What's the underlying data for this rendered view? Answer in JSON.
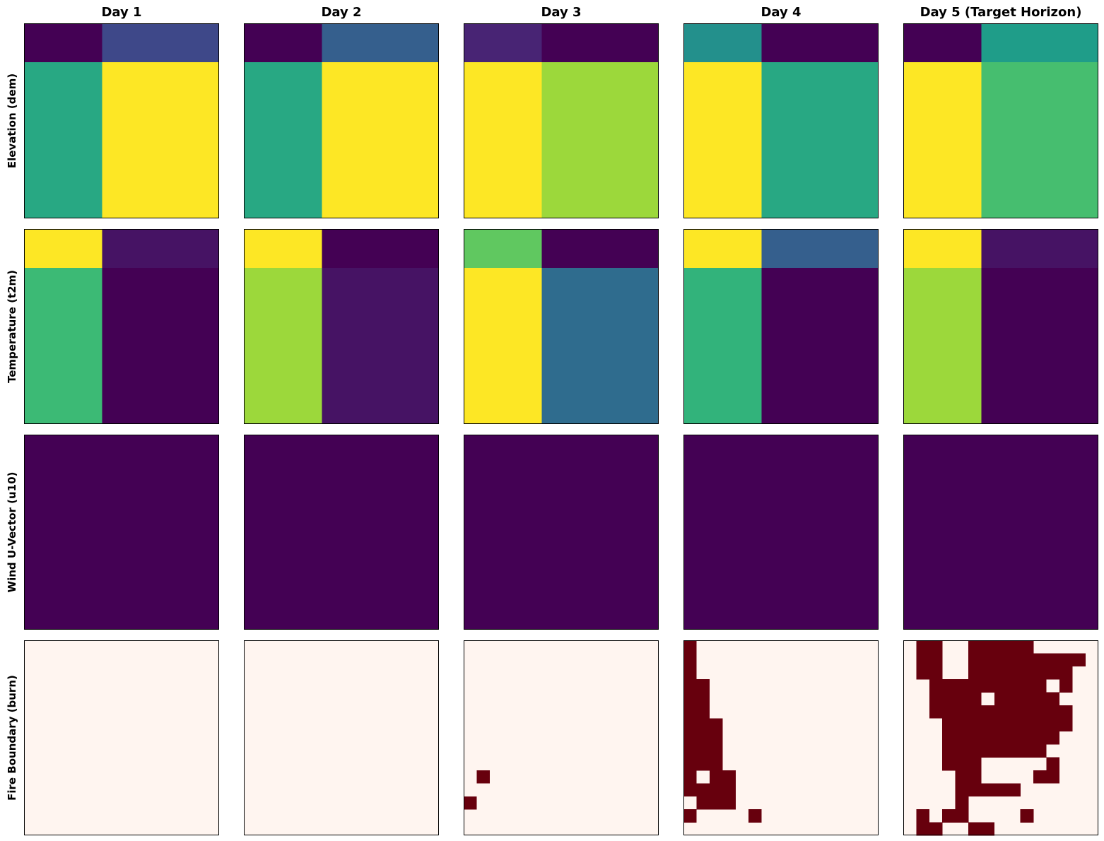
{
  "colors": {
    "viridis_scale": [
      "#440154",
      "#482878",
      "#3e4989",
      "#31688e",
      "#26828e",
      "#1f9e89",
      "#35b779",
      "#6ece58",
      "#b5de2b",
      "#fde725"
    ],
    "burn_background": "#fff5f0",
    "burn_fire": "#67000d",
    "frame": "#000000"
  },
  "chart_data": {
    "type": "heatmap",
    "columns": [
      "Day 1",
      "Day 2",
      "Day 3",
      "Day 4",
      "Day 5 (Target Horizon)"
    ],
    "rows": [
      "Elevation (dem)",
      "Temperature (t2m)",
      "Wind U-Vector (u10)",
      "Fire Boundary (burn)"
    ],
    "grid_size": [
      15,
      15
    ],
    "colormaps": [
      "viridis",
      "viridis",
      "viridis",
      "Reds"
    ],
    "ticks": "none",
    "block_panels": {
      "note": "values normalized 0-1 (viridis); top block = first 3 grid rows, left block = first 6 grid columns",
      "Elevation (dem)": [
        {
          "top_left": 0.0,
          "top_right": 0.22,
          "bottom_left": 0.6,
          "bottom_right": 1.0
        },
        {
          "top_left": 0.0,
          "top_right": 0.3,
          "bottom_left": 0.6,
          "bottom_right": 1.0
        },
        {
          "top_left": 0.1,
          "top_right": 0.0,
          "bottom_left": 1.0,
          "bottom_right": 0.85
        },
        {
          "top_left": 0.5,
          "top_right": 0.0,
          "bottom_left": 1.0,
          "bottom_right": 0.6
        },
        {
          "top_left": 0.0,
          "top_right": 0.55,
          "bottom_left": 1.0,
          "bottom_right": 0.7
        }
      ],
      "Temperature (t2m)": [
        {
          "top_left": 1.0,
          "top_right": 0.05,
          "bottom_left": 0.68,
          "bottom_right": 0.0
        },
        {
          "top_left": 1.0,
          "top_right": 0.0,
          "bottom_left": 0.85,
          "bottom_right": 0.05
        },
        {
          "top_left": 0.75,
          "top_right": 0.0,
          "bottom_left": 1.0,
          "bottom_right": 0.35
        },
        {
          "top_left": 1.0,
          "top_right": 0.3,
          "bottom_left": 0.65,
          "bottom_right": 0.0
        },
        {
          "top_left": 1.0,
          "top_right": 0.05,
          "bottom_left": 0.85,
          "bottom_right": 0.0
        }
      ],
      "Wind U-Vector (u10)": [
        {
          "top_left": 0.0,
          "top_right": 0.0,
          "bottom_left": 0.0,
          "bottom_right": 0.0
        },
        {
          "top_left": 0.0,
          "top_right": 0.0,
          "bottom_left": 0.0,
          "bottom_right": 0.0
        },
        {
          "top_left": 0.0,
          "top_right": 0.0,
          "bottom_left": 0.0,
          "bottom_right": 0.0
        },
        {
          "top_left": 0.0,
          "top_right": 0.0,
          "bottom_left": 0.0,
          "bottom_right": 0.0
        },
        {
          "top_left": 0.0,
          "top_right": 0.0,
          "bottom_left": 0.0,
          "bottom_right": 0.0
        }
      ]
    },
    "burn_masks": {
      "note": "15 rows x 15 cols, 1 = burned cell",
      "Day 1": [
        "000000000000000",
        "000000000000000",
        "000000000000000",
        "000000000000000",
        "000000000000000",
        "000000000000000",
        "000000000000000",
        "000000000000000",
        "000000000000000",
        "000000000000000",
        "000000000000000",
        "000000000000000",
        "000000000000000",
        "000000000000000",
        "000000000000000"
      ],
      "Day 2": [
        "000000000000000",
        "000000000000000",
        "000000000000000",
        "000000000000000",
        "000000000000000",
        "000000000000000",
        "000000000000000",
        "000000000000000",
        "000000000000000",
        "000000000000000",
        "000000000000000",
        "000000000000000",
        "000000000000000",
        "000000000000000",
        "000000000000000"
      ],
      "Day 3": [
        "000000000000000",
        "000000000000000",
        "000000000000000",
        "000000000000000",
        "000000000000000",
        "000000000000000",
        "000000000000000",
        "000000000000000",
        "000000000000000",
        "000000000000000",
        "010000000000000",
        "000000000000000",
        "100000000000000",
        "000000000000000",
        "000000000000000"
      ],
      "Day 4": [
        "100000000000000",
        "100000000000000",
        "100000000000000",
        "110000000000000",
        "110000000000000",
        "110000000000000",
        "111000000000000",
        "111000000000000",
        "111000000000000",
        "111000000000000",
        "101100000000000",
        "111100000000000",
        "011100000000000",
        "100001000000000",
        "000000000000000"
      ],
      "Day 5 (Target Horizon)": [
        "011001111100000",
        "011001111111110",
        "011001111111100",
        "001111111110100",
        "001111011111000",
        "001111111111100",
        "000111111111100",
        "000111111111000",
        "000111111110000",
        "000111000001000",
        "000011000011000",
        "000011111000000",
        "000010000000000",
        "010110000100000",
        "011001100000000"
      ]
    }
  }
}
